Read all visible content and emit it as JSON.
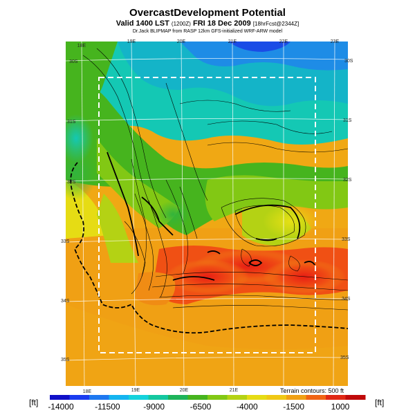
{
  "header": {
    "title": "OvercastDevelopment Potential",
    "subtitle_main": "Valid 1400 LST",
    "subtitle_code": "(1200Z)",
    "subtitle_date": "FRI 18 Dec 2009",
    "subtitle_forecast": "[18hrFcst@2344Z]",
    "credit": "Dr.Jack BLIPMAP from RASP 12km GFS-initialized WRF-ARW model"
  },
  "map": {
    "lon_labels_top": [
      "18E",
      "19E",
      "20E",
      "21E",
      "22E",
      "23E"
    ],
    "lon_labels_bottom": [
      "18E",
      "19E",
      "20E",
      "21E"
    ],
    "lat_labels_left": [
      "30S",
      "31S",
      "32S",
      "33S",
      "34S",
      "35S"
    ],
    "lat_labels_right": [
      "30S",
      "31S",
      "32S",
      "33S",
      "34S",
      "35S"
    ],
    "terrain_note": "Terrain contours: 500 ft"
  },
  "legend": {
    "unit_left": "[ft]",
    "unit_right": "[ft]",
    "tick_labels": [
      "-14000",
      "-11500",
      "-9000",
      "-6500",
      "-4000",
      "-1500",
      "1000"
    ],
    "colors": [
      "#1010c8",
      "#1a3cf0",
      "#1e78f0",
      "#14b4f0",
      "#14d2dc",
      "#14c8a0",
      "#1eb45a",
      "#46b41e",
      "#82c814",
      "#b4d214",
      "#e6dc14",
      "#f0c814",
      "#f0a014",
      "#f06414",
      "#e02814",
      "#c00a0a"
    ]
  }
}
